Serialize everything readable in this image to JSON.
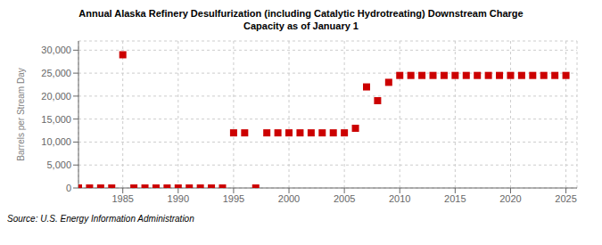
{
  "chart_data": {
    "type": "scatter",
    "title": "Annual Alaska Refinery Desulfurization (including Catalytic Hydrotreating) Downstream Charge\nCapacity as of January 1",
    "ylabel": "Barrels per Stream Day",
    "source": "Source: U.S. Energy Information Administration",
    "color": "#cc0000",
    "marker": "square",
    "grid": true,
    "x": [
      1981,
      1982,
      1983,
      1984,
      1985,
      1986,
      1987,
      1988,
      1989,
      1990,
      1991,
      1992,
      1993,
      1994,
      1995,
      1996,
      1997,
      1998,
      1999,
      2000,
      2001,
      2002,
      2003,
      2004,
      2005,
      2006,
      2007,
      2008,
      2009,
      2010,
      2011,
      2012,
      2013,
      2014,
      2015,
      2016,
      2017,
      2018,
      2019,
      2020,
      2021,
      2022,
      2023,
      2024,
      2025
    ],
    "values": [
      0,
      0,
      0,
      0,
      29000,
      0,
      0,
      0,
      0,
      0,
      0,
      0,
      0,
      0,
      12000,
      12000,
      0,
      12000,
      12000,
      12000,
      12000,
      12000,
      12000,
      12000,
      12000,
      13000,
      22000,
      19000,
      23000,
      24500,
      24500,
      24500,
      24500,
      24500,
      24500,
      24500,
      24500,
      24500,
      24500,
      24500,
      24500,
      24500,
      24500,
      24500,
      24500
    ],
    "xlim": [
      1981,
      2026
    ],
    "ylim": [
      0,
      32000
    ],
    "xticks": [
      1985,
      1990,
      1995,
      2000,
      2005,
      2010,
      2015,
      2020,
      2025
    ],
    "yticks": [
      0,
      {
        "value": 5000,
        "label": "5,000"
      },
      {
        "value": 10000,
        "label": "10,000"
      },
      {
        "value": 15000,
        "label": "15,000"
      },
      {
        "value": 20000,
        "label": "20,000"
      },
      {
        "value": 25000,
        "label": "25,000"
      },
      {
        "value": 30000,
        "label": "30,000"
      }
    ]
  }
}
